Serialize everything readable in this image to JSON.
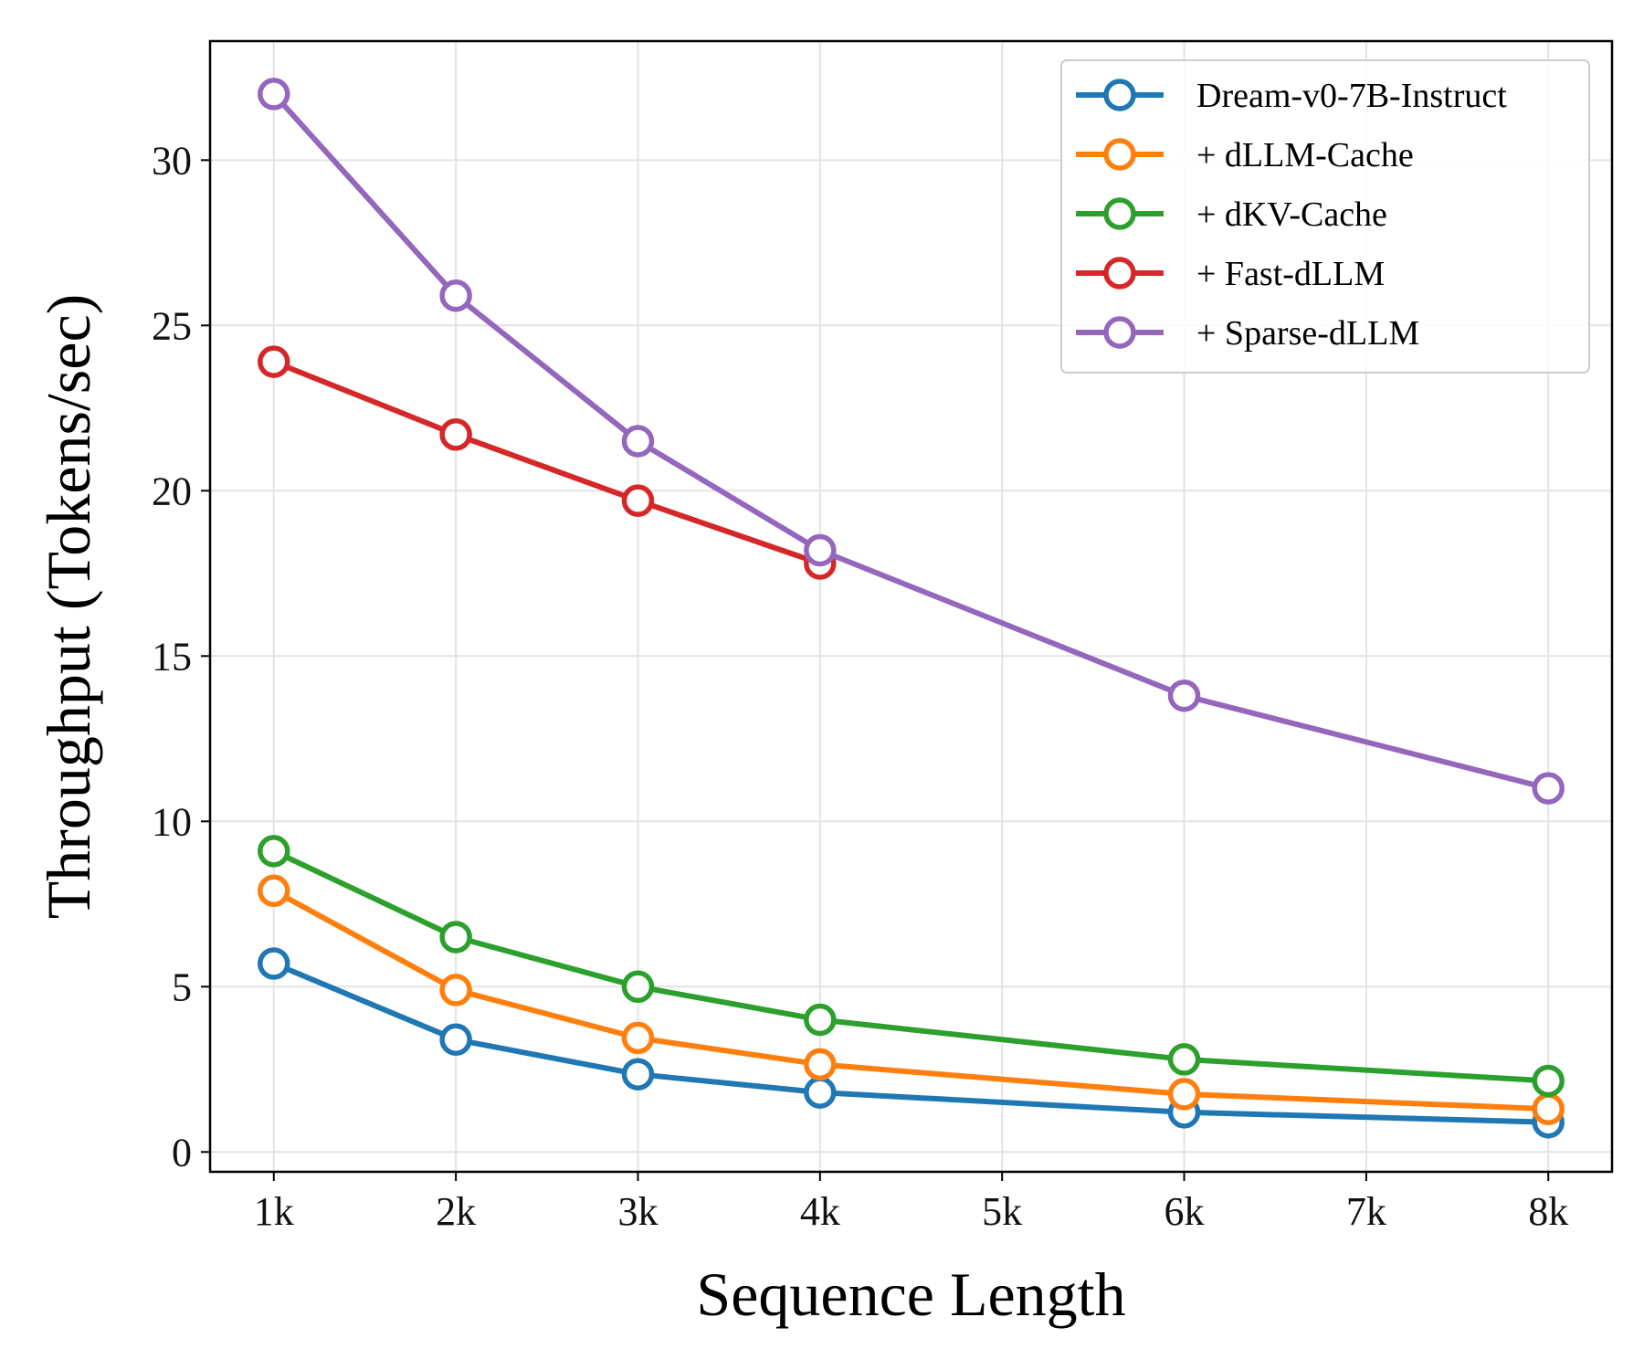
{
  "chart_data": {
    "type": "line",
    "title": "",
    "xlabel": "Sequence Length",
    "ylabel": "Throughput (Tokens/sec)",
    "x_ticks": [
      {
        "value": 1,
        "label": "1k"
      },
      {
        "value": 2,
        "label": "2k"
      },
      {
        "value": 3,
        "label": "3k"
      },
      {
        "value": 4,
        "label": "4k"
      },
      {
        "value": 5,
        "label": "5k"
      },
      {
        "value": 6,
        "label": "6k"
      },
      {
        "value": 7,
        "label": "7k"
      },
      {
        "value": 8,
        "label": "8k"
      }
    ],
    "y_ticks": [
      {
        "value": 0,
        "label": "0"
      },
      {
        "value": 5,
        "label": "5"
      },
      {
        "value": 10,
        "label": "10"
      },
      {
        "value": 15,
        "label": "15"
      },
      {
        "value": 20,
        "label": "20"
      },
      {
        "value": 25,
        "label": "25"
      },
      {
        "value": 30,
        "label": "30"
      }
    ],
    "xlim": [
      0.65,
      8.35
    ],
    "ylim": [
      -0.6,
      33.6
    ],
    "grid": true,
    "legend_position": "top-right",
    "series": [
      {
        "name": "Dream-v0-7B-Instruct",
        "color": "#1f77b4",
        "x": [
          1,
          2,
          3,
          4,
          6,
          8
        ],
        "values": [
          5.7,
          3.4,
          2.35,
          1.8,
          1.2,
          0.9
        ]
      },
      {
        "name": "+ dLLM-Cache",
        "color": "#ff7f0e",
        "x": [
          1,
          2,
          3,
          4,
          6,
          8
        ],
        "values": [
          7.9,
          4.9,
          3.45,
          2.65,
          1.75,
          1.3
        ]
      },
      {
        "name": "+ dKV-Cache",
        "color": "#2ca02c",
        "x": [
          1,
          2,
          3,
          4,
          6,
          8
        ],
        "values": [
          9.1,
          6.5,
          5.0,
          4.0,
          2.8,
          2.15
        ]
      },
      {
        "name": "+ Fast-dLLM",
        "color": "#d62728",
        "x": [
          1,
          2,
          3,
          4
        ],
        "values": [
          23.9,
          21.7,
          19.7,
          17.8
        ]
      },
      {
        "name": "+ Sparse-dLLM",
        "color": "#9467bd",
        "x": [
          1,
          2,
          3,
          4,
          6,
          8
        ],
        "values": [
          32.0,
          25.9,
          21.5,
          18.2,
          13.8,
          11.0
        ]
      }
    ]
  }
}
